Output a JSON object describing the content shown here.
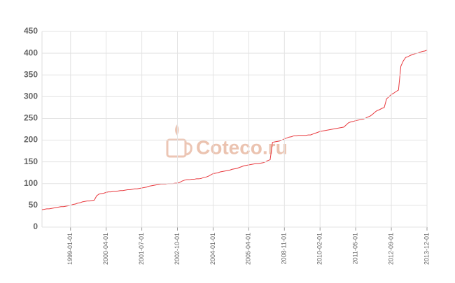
{
  "chart_data": {
    "type": "line",
    "watermark": "Coteco.ru",
    "color": "#e8383d",
    "grid": true,
    "ylim": [
      0,
      450
    ],
    "yticks": [
      0,
      50,
      100,
      150,
      200,
      250,
      300,
      350,
      400,
      450
    ],
    "categories": [
      null,
      null,
      null,
      null,
      null,
      null,
      null,
      null,
      null,
      null,
      null,
      null,
      "1999-01-01",
      null,
      null,
      null,
      null,
      null,
      null,
      null,
      null,
      null,
      null,
      null,
      null,
      null,
      null,
      "2000-04-01",
      null,
      null,
      null,
      null,
      null,
      null,
      null,
      null,
      null,
      null,
      null,
      null,
      null,
      null,
      "2001-07-01",
      null,
      null,
      null,
      null,
      null,
      null,
      null,
      null,
      null,
      null,
      null,
      null,
      null,
      null,
      "2002-10-01",
      null,
      null,
      null,
      null,
      null,
      null,
      null,
      null,
      null,
      null,
      null,
      null,
      null,
      null,
      "2004-01-01",
      null,
      null,
      null,
      null,
      null,
      null,
      null,
      null,
      null,
      null,
      null,
      null,
      null,
      null,
      "2005-04-01",
      null,
      null,
      null,
      null,
      null,
      null,
      null,
      null,
      null,
      null,
      null,
      null,
      null,
      null,
      "2008-11-01",
      null,
      null,
      null,
      null,
      null,
      null,
      null,
      null,
      null,
      null,
      null,
      null,
      null,
      null,
      "2010-02-01",
      null,
      null,
      null,
      null,
      null,
      null,
      null,
      null,
      null,
      null,
      null,
      null,
      null,
      null,
      "2011-05-01",
      null,
      null,
      null,
      null,
      null,
      null,
      null,
      null,
      null,
      null,
      null,
      null,
      null,
      null,
      "2012-09-01",
      null,
      null,
      null,
      null,
      null,
      null,
      null,
      null,
      null,
      null,
      null,
      null,
      null,
      null,
      "2013-12-01"
    ],
    "values": [
      40,
      41,
      42,
      42,
      43,
      44,
      45,
      46,
      47,
      47,
      48,
      49,
      50,
      52,
      53,
      55,
      56,
      58,
      59,
      60,
      60,
      61,
      62,
      72,
      76,
      77,
      78,
      80,
      81,
      81,
      82,
      82,
      83,
      84,
      84,
      85,
      86,
      86,
      87,
      88,
      88,
      89,
      90,
      91,
      92,
      94,
      95,
      96,
      97,
      98,
      99,
      99,
      99,
      100,
      100,
      100,
      101,
      101,
      103,
      106,
      108,
      109,
      109,
      110,
      110,
      111,
      111,
      112,
      114,
      115,
      117,
      120,
      123,
      124,
      125,
      127,
      128,
      129,
      130,
      131,
      133,
      134,
      135,
      137,
      139,
      141,
      142,
      143,
      144,
      145,
      146,
      146,
      147,
      148,
      150,
      153,
      155,
      195,
      196,
      197,
      198,
      200,
      203,
      205,
      207,
      208,
      210,
      210,
      211,
      211,
      211,
      211,
      212,
      212,
      214,
      216,
      218,
      220,
      221,
      222,
      223,
      224,
      225,
      226,
      227,
      228,
      229,
      230,
      235,
      240,
      242,
      243,
      245,
      246,
      247,
      248,
      250,
      253,
      255,
      259,
      264,
      268,
      270,
      273,
      275,
      295,
      300,
      305,
      308,
      312,
      315,
      370,
      382,
      390,
      392,
      395,
      397,
      399,
      400,
      402,
      404,
      405,
      407
    ]
  }
}
